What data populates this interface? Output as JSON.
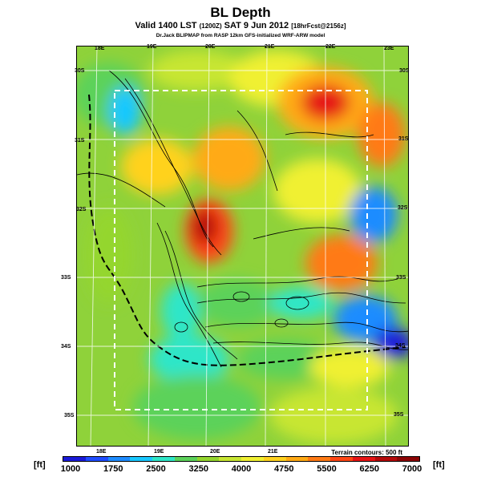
{
  "header": {
    "title": "BL Depth",
    "subtitle_main": "Valid 1400 LST",
    "subtitle_paren": "(1200Z)",
    "subtitle_date": "SAT 9 Jun 2012",
    "subtitle_tag": "[18hrFcst@2156z]",
    "credit": "Dr.Jack BLIPMAP from RASP 12km GFS-initialized WRF-ARW model"
  },
  "map": {
    "lon_labels_top": [
      "18E",
      "19E",
      "20E",
      "21E",
      "22E",
      "23E"
    ],
    "lon_labels_bottom": [
      "18E",
      "19E",
      "20E",
      "21E"
    ],
    "lat_labels_left": [
      "30S",
      "31S",
      "32S",
      "33S",
      "34S",
      "35S"
    ],
    "lat_labels_right": [
      "30S",
      "31S",
      "32S",
      "33S",
      "34S",
      "35S"
    ],
    "terrain_note": "Terrain contours: 500 ft"
  },
  "legend": {
    "unit_left": "[ft]",
    "unit_right": "[ft]",
    "ticks": [
      "1000",
      "1750",
      "2500",
      "3250",
      "4000",
      "4750",
      "5500",
      "6250",
      "7000"
    ],
    "colors": [
      "#1a1ad9",
      "#1f4cff",
      "#1e8cff",
      "#19c8ff",
      "#2ee6c8",
      "#5cd25a",
      "#94d62e",
      "#c8e632",
      "#f0f032",
      "#ffd21e",
      "#ffaa14",
      "#ff7a14",
      "#ff4614",
      "#e61414",
      "#b40a0a",
      "#8c0505"
    ]
  }
}
